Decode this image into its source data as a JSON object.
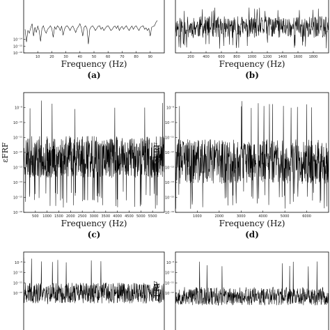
{
  "chart_data": [
    {
      "type": "line",
      "panel_label": "(a)",
      "xlabel": "Frequency (Hz)",
      "ylabel": "",
      "yscale": "log",
      "ylim": [
        1e-16,
        1e-08
      ],
      "xlim": [
        0,
        100
      ],
      "xticks": [
        10,
        20,
        30,
        40,
        50,
        60,
        70,
        80,
        90
      ],
      "yticks": [
        {
          "v": 1e-14,
          "label": "10⁻¹⁴"
        },
        {
          "v": 1e-15,
          "label": "10⁻¹⁵"
        },
        {
          "v": 1e-16,
          "label": "10⁻¹⁶"
        }
      ],
      "series": [
        {
          "x": [
            1,
            2,
            3,
            4,
            5,
            6,
            7,
            8,
            9,
            10,
            11,
            12,
            13,
            14,
            15,
            16,
            17,
            18,
            19,
            20,
            21,
            22,
            23,
            24,
            25,
            26,
            27,
            28,
            29,
            30,
            31,
            32,
            33,
            34,
            35,
            36,
            37,
            38,
            39,
            40,
            41,
            42,
            43,
            44,
            45,
            46,
            47,
            48,
            49,
            50,
            51,
            52,
            53,
            54,
            55,
            56,
            57,
            58,
            59,
            60,
            61,
            62,
            63,
            64,
            65,
            66,
            67,
            68,
            69,
            70,
            71,
            72,
            73,
            74,
            75,
            76,
            77,
            78,
            79,
            80,
            81,
            82,
            83,
            84,
            85,
            86,
            87,
            88,
            89,
            90,
            91,
            92,
            93,
            94,
            95
          ],
          "y": [
            3e-13,
            4e-15,
            2e-13,
            8e-14,
            5e-13,
            2e-12,
            3e-14,
            6e-13,
            1e-13,
            9e-13,
            2e-13,
            5e-15,
            4e-13,
            1e-12,
            2e-13,
            8e-14,
            3e-13,
            5e-13,
            1e-12,
            4e-13,
            2e-14,
            7e-13,
            3e-13,
            1e-12,
            6e-13,
            2e-13,
            9e-13,
            4e-14,
            3e-13,
            8e-13,
            1e-12,
            5e-13,
            2e-13,
            6e-13,
            9e-13,
            3e-13,
            1e-13,
            4e-13,
            8e-13,
            2e-12,
            5e-13,
            3e-14,
            6e-13,
            1e-12,
            4e-13,
            2e-15,
            3e-13,
            7e-13,
            1e-12,
            5e-13,
            2e-13,
            4e-13,
            9e-13,
            1e-12,
            3e-13,
            6e-13,
            2e-13,
            4e-13,
            8e-13,
            1e-12,
            5e-13,
            2e-13,
            3e-13,
            7e-13,
            9e-13,
            4e-13,
            1e-12,
            2e-13,
            5e-13,
            8e-13,
            3e-13,
            6e-13,
            1e-12,
            4e-13,
            2e-13,
            5e-13,
            9e-13,
            3e-13,
            7e-13,
            1e-12,
            4e-13,
            2e-13,
            6e-13,
            8e-13,
            1e-12,
            3e-13,
            5e-13,
            2e-13,
            4e-13,
            3e-14,
            6e-13,
            8e-13,
            1e-12,
            3e-12,
            6e-12
          ]
        }
      ]
    },
    {
      "type": "line",
      "panel_label": "(b)",
      "xlabel": "Frequency (Hz)",
      "ylabel": "",
      "yscale": "log",
      "ylim": [
        1e-16,
        1e-08
      ],
      "xlim": [
        0,
        2000
      ],
      "xticks": [
        200,
        400,
        600,
        800,
        1000,
        1200,
        1400,
        1600,
        1800
      ],
      "yticks": [],
      "series": [
        {
          "n": 500,
          "seed": 11,
          "base_exp": -12.2,
          "spread": 1.6,
          "floor_exp": -15.5,
          "top_exp": -9.6
        }
      ]
    },
    {
      "type": "line",
      "panel_label": "(c)",
      "xlabel": "Frequency (Hz)",
      "ylabel": "εFRF",
      "yscale": "log",
      "ylim": [
        1e-16,
        1e-08
      ],
      "xlim": [
        0,
        6000
      ],
      "xticks": [
        500,
        1000,
        1500,
        2000,
        2500,
        3000,
        3500,
        4000,
        4500,
        5000,
        5500
      ],
      "yticks": [
        {
          "v": 1e-09,
          "label": "10⁻⁹"
        },
        {
          "v": 1e-10,
          "label": "10⁻¹⁰"
        },
        {
          "v": 1e-11,
          "label": "10⁻¹¹"
        },
        {
          "v": 1e-12,
          "label": "10⁻¹²"
        },
        {
          "v": 1e-13,
          "label": "10⁻¹³"
        },
        {
          "v": 1e-14,
          "label": "10⁻¹⁴"
        },
        {
          "v": 1e-15,
          "label": "10⁻¹⁵"
        },
        {
          "v": 1e-16,
          "label": "10⁻¹⁶"
        }
      ],
      "series": [
        {
          "n": 700,
          "seed": 23,
          "base_exp": -12.3,
          "spread": 1.4,
          "floor_exp": -15.8,
          "top_exp": -8.8
        }
      ]
    },
    {
      "type": "line",
      "panel_label": "(d)",
      "xlabel": "Frequency (Hz)",
      "ylabel": "εFRF",
      "yscale": "log",
      "ylim": [
        1e-16,
        1e-08
      ],
      "xlim": [
        0,
        7000
      ],
      "xticks": [
        1000,
        2000,
        3000,
        4000,
        5000,
        6000
      ],
      "yticks": [
        {
          "v": 1e-09,
          "label": "10⁻⁹"
        },
        {
          "v": 1e-10,
          "label": "10⁻¹⁰"
        },
        {
          "v": 1e-11,
          "label": "10⁻¹¹"
        },
        {
          "v": 1e-12,
          "label": "10⁻¹²"
        },
        {
          "v": 1e-13,
          "label": "10⁻¹³"
        },
        {
          "v": 1e-14,
          "label": "10⁻¹⁴"
        },
        {
          "v": 1e-15,
          "label": "10⁻¹⁵"
        },
        {
          "v": 1e-16,
          "label": "10⁻¹⁶"
        }
      ],
      "series": [
        {
          "n": 700,
          "seed": 37,
          "base_exp": -12.6,
          "spread": 1.5,
          "floor_exp": -15.8,
          "top_exp": -8.8
        }
      ]
    },
    {
      "type": "line",
      "panel_label": "",
      "xlabel": "",
      "ylabel": "",
      "yscale": "log",
      "ylim": [
        1e-16,
        1e-08
      ],
      "xlim": [
        0,
        10000
      ],
      "xticks": [],
      "yticks": [
        {
          "v": 1e-09,
          "label": "10⁻⁹"
        },
        {
          "v": 1e-10,
          "label": "10⁻¹⁰"
        },
        {
          "v": 1e-11,
          "label": "10⁻¹¹"
        },
        {
          "v": 1e-12,
          "label": "10⁻¹²"
        }
      ],
      "series": [
        {
          "n": 600,
          "seed": 41,
          "base_exp": -12.0,
          "spread": 1.0,
          "floor_exp": -13.2,
          "top_exp": -8.8
        }
      ]
    },
    {
      "type": "line",
      "panel_label": "",
      "xlabel": "",
      "ylabel": "εFRF",
      "yscale": "log",
      "ylim": [
        1e-16,
        1e-08
      ],
      "xlim": [
        0,
        10000
      ],
      "xticks": [],
      "yticks": [
        {
          "v": 1e-09,
          "label": "10⁻⁹"
        },
        {
          "v": 1e-10,
          "label": "10⁻¹⁰"
        },
        {
          "v": 1e-11,
          "label": "10⁻¹¹"
        },
        {
          "v": 1e-12,
          "label": "10⁻¹²"
        }
      ],
      "series": [
        {
          "n": 600,
          "seed": 53,
          "base_exp": -12.3,
          "spread": 0.9,
          "floor_exp": -13.2,
          "top_exp": -9.2
        }
      ]
    }
  ]
}
